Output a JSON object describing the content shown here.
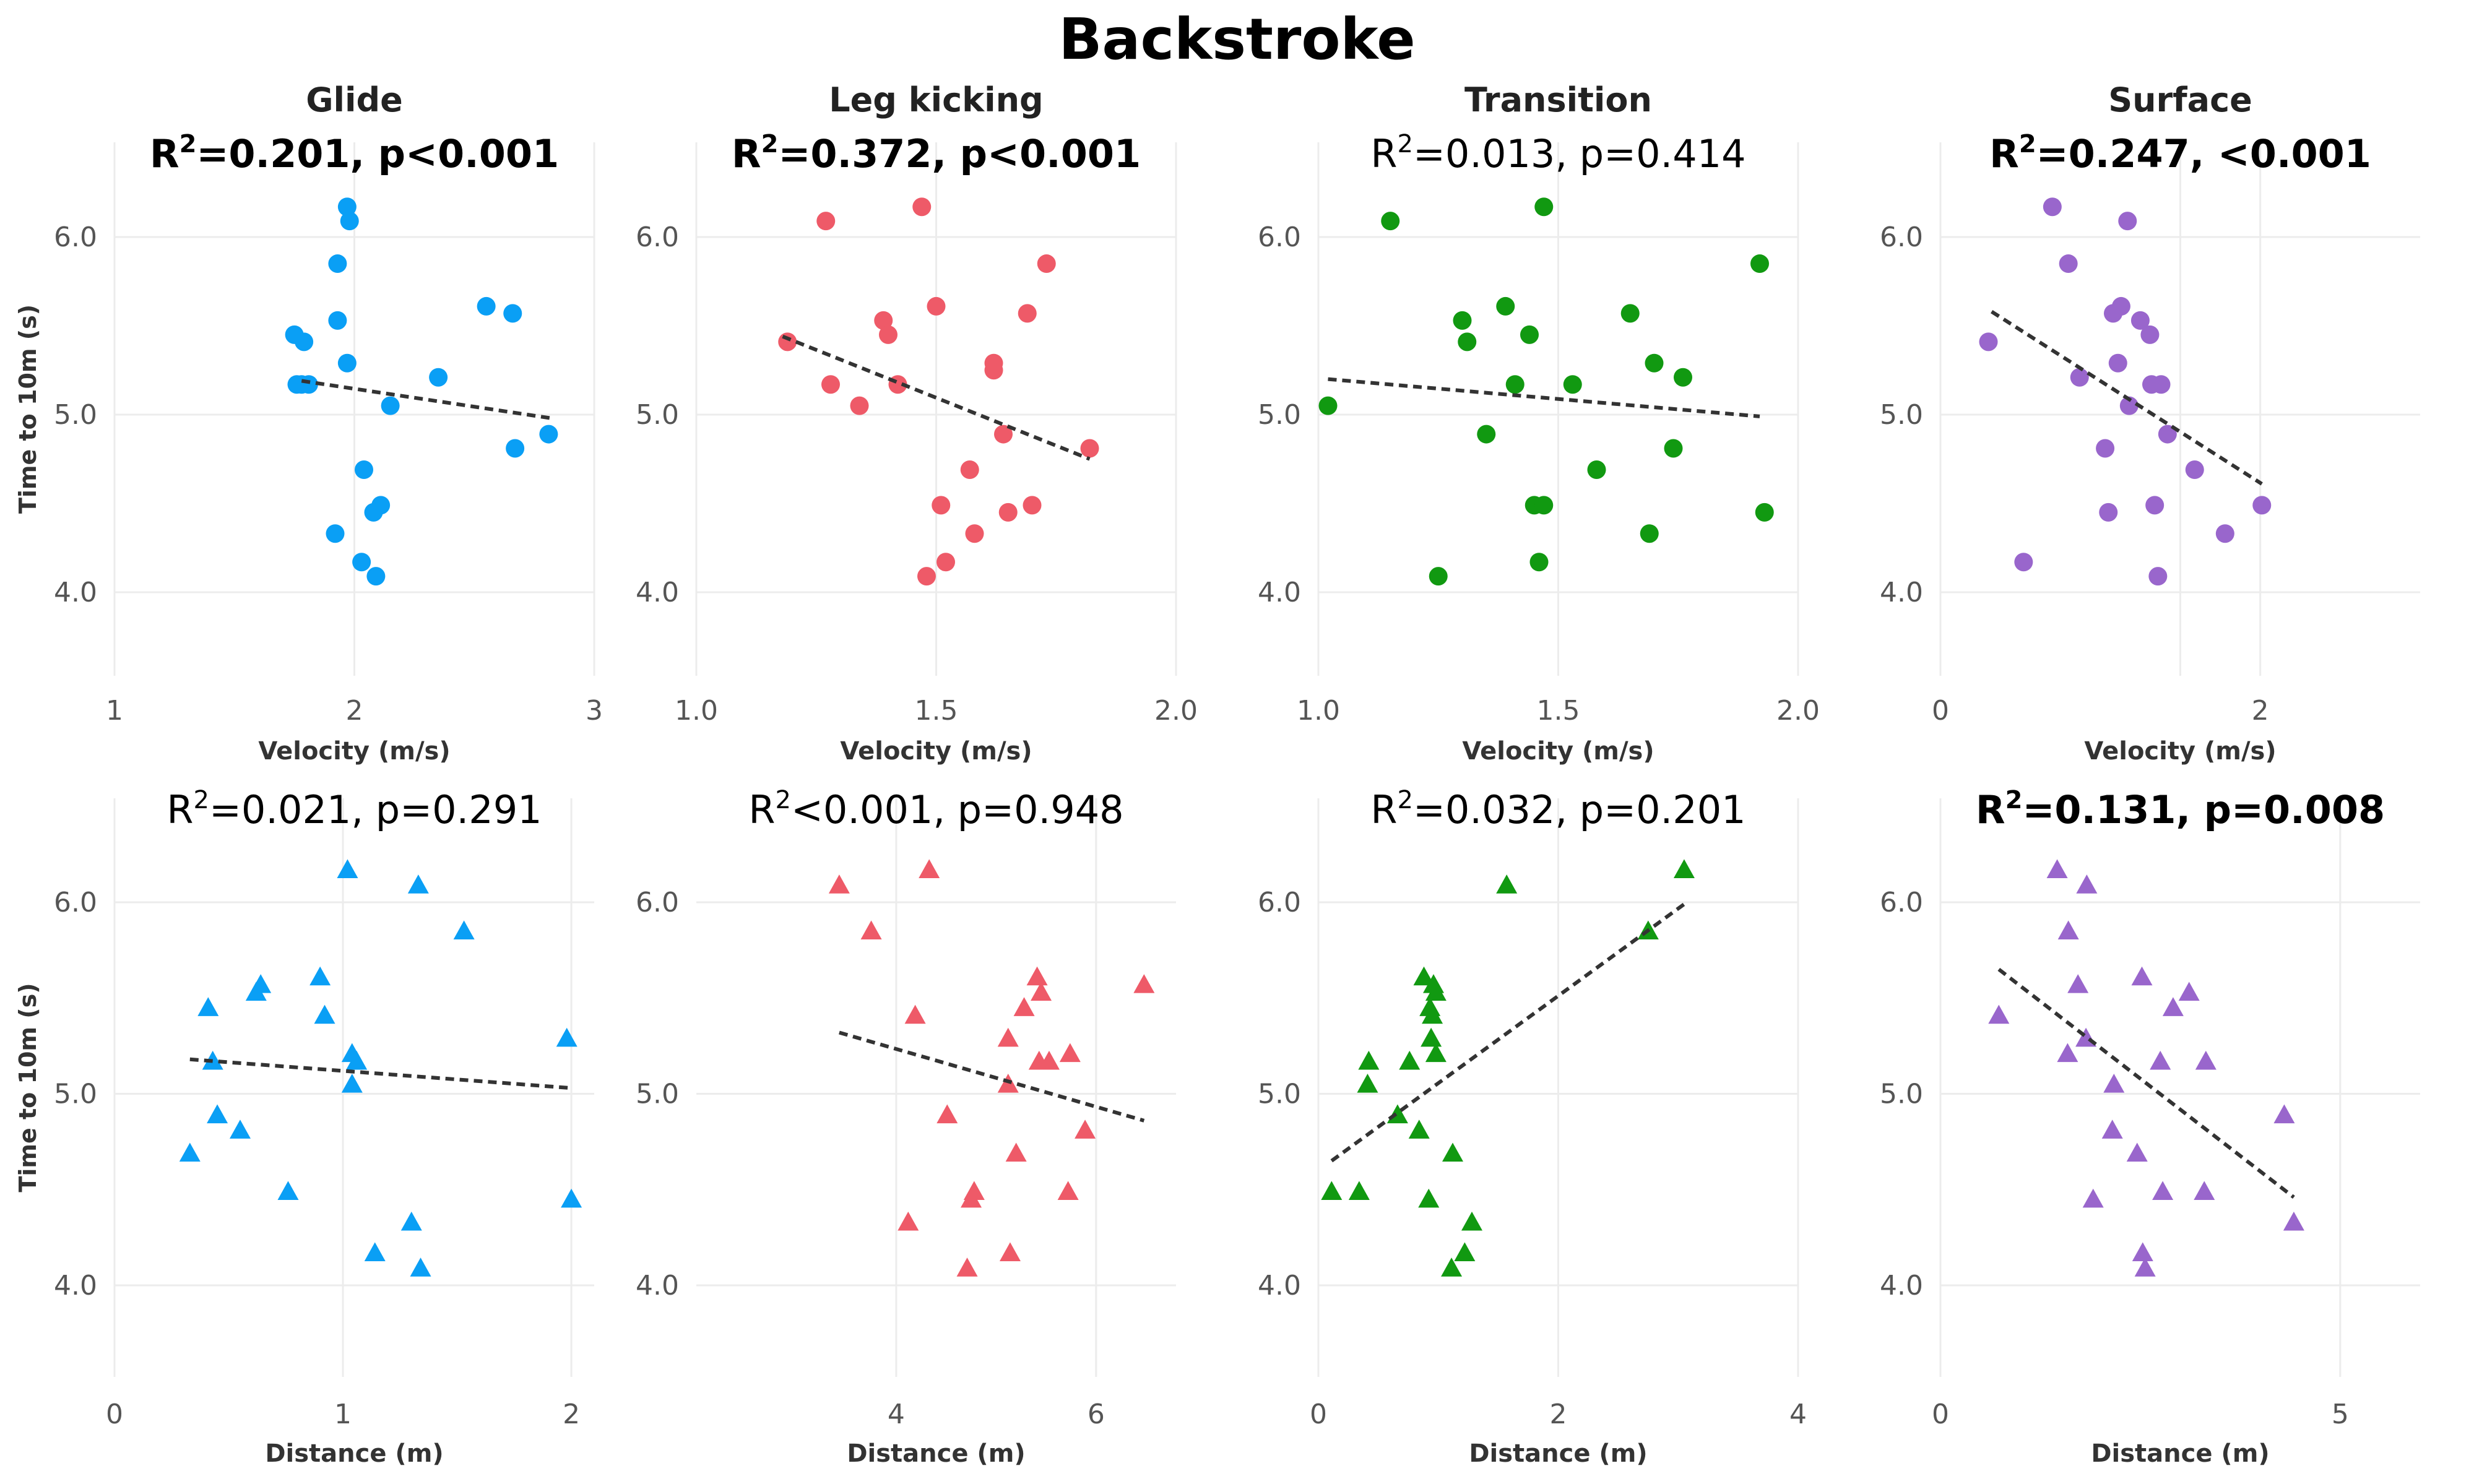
{
  "figure_title": "Backstroke",
  "colors": {
    "glide": "#0a9ff5",
    "leg_kicking": "#ee5a68",
    "transition": "#119911",
    "surface": "#9966cc",
    "trendline": "#333333",
    "grid": "#ececec",
    "tick_text": "#555555"
  },
  "chart_data": [
    {
      "id": "glide-velocity",
      "type": "scatter",
      "column_title": "Glide",
      "panel_color_key": "glide",
      "stat_bold": true,
      "stat": {
        "r_pre": "R",
        "sup": "2",
        "r_post": "=0.201, p<0.001"
      },
      "xlabel": "Velocity (m/s)",
      "ylabel": "Time to 10m (s)",
      "xlim": [
        1,
        3
      ],
      "xticks": [
        "1",
        "2",
        "3"
      ],
      "ylim": [
        3.5,
        6.5
      ],
      "yticks": [
        "4.0",
        "5.0",
        "6.0"
      ],
      "marker": "circle",
      "points": [
        [
          1.97,
          6.17
        ],
        [
          1.98,
          6.09
        ],
        [
          1.93,
          5.85
        ],
        [
          2.55,
          5.61
        ],
        [
          2.66,
          5.57
        ],
        [
          1.93,
          5.53
        ],
        [
          1.75,
          5.45
        ],
        [
          1.79,
          5.41
        ],
        [
          1.97,
          5.29
        ],
        [
          2.35,
          5.21
        ],
        [
          1.76,
          5.17
        ],
        [
          1.78,
          5.17
        ],
        [
          1.81,
          5.17
        ],
        [
          2.15,
          5.05
        ],
        [
          2.81,
          4.89
        ],
        [
          2.67,
          4.81
        ],
        [
          2.04,
          4.69
        ],
        [
          2.11,
          4.49
        ],
        [
          2.08,
          4.45
        ],
        [
          1.92,
          4.33
        ],
        [
          2.03,
          4.17
        ],
        [
          2.09,
          4.09
        ]
      ],
      "trend": [
        [
          1.78,
          5.19
        ],
        [
          2.82,
          4.98
        ]
      ]
    },
    {
      "id": "leg-kicking-velocity",
      "type": "scatter",
      "column_title": "Leg kicking",
      "panel_color_key": "leg_kicking",
      "stat_bold": true,
      "stat": {
        "r_pre": "R",
        "sup": "2",
        "r_post": "=0.372, p<0.001"
      },
      "xlabel": "Velocity (m/s)",
      "ylabel": "",
      "xlim": [
        1.0,
        2.0
      ],
      "xticks": [
        "1.0",
        "1.5",
        "2.0"
      ],
      "ylim": [
        3.5,
        6.5
      ],
      "yticks": [
        "4.0",
        "5.0",
        "6.0"
      ],
      "marker": "circle",
      "points": [
        [
          1.47,
          6.17
        ],
        [
          1.27,
          6.09
        ],
        [
          1.73,
          5.85
        ],
        [
          1.5,
          5.61
        ],
        [
          1.69,
          5.57
        ],
        [
          1.39,
          5.53
        ],
        [
          1.4,
          5.45
        ],
        [
          1.19,
          5.41
        ],
        [
          1.62,
          5.29
        ],
        [
          1.62,
          5.25
        ],
        [
          1.28,
          5.17
        ],
        [
          1.42,
          5.17
        ],
        [
          1.34,
          5.05
        ],
        [
          1.64,
          4.89
        ],
        [
          1.82,
          4.81
        ],
        [
          1.57,
          4.69
        ],
        [
          1.51,
          4.49
        ],
        [
          1.7,
          4.49
        ],
        [
          1.65,
          4.45
        ],
        [
          1.58,
          4.33
        ],
        [
          1.52,
          4.17
        ],
        [
          1.48,
          4.09
        ]
      ],
      "trend": [
        [
          1.18,
          5.44
        ],
        [
          1.82,
          4.75
        ]
      ]
    },
    {
      "id": "transition-velocity",
      "type": "scatter",
      "column_title": "Transition",
      "panel_color_key": "transition",
      "stat_bold": false,
      "stat": {
        "r_pre": "R",
        "sup": "2",
        "r_post": "=0.013, p=0.414"
      },
      "xlabel": "Velocity (m/s)",
      "ylabel": "",
      "xlim": [
        1.0,
        2.0
      ],
      "xticks": [
        "1.0",
        "1.5",
        "2.0"
      ],
      "ylim": [
        3.5,
        6.5
      ],
      "yticks": [
        "4.0",
        "5.0",
        "6.0"
      ],
      "marker": "circle",
      "points": [
        [
          1.47,
          6.17
        ],
        [
          1.15,
          6.09
        ],
        [
          1.92,
          5.85
        ],
        [
          1.39,
          5.61
        ],
        [
          1.65,
          5.57
        ],
        [
          1.3,
          5.53
        ],
        [
          1.44,
          5.45
        ],
        [
          1.31,
          5.41
        ],
        [
          1.7,
          5.29
        ],
        [
          1.76,
          5.21
        ],
        [
          1.41,
          5.17
        ],
        [
          1.53,
          5.17
        ],
        [
          1.02,
          5.05
        ],
        [
          1.35,
          4.89
        ],
        [
          1.74,
          4.81
        ],
        [
          1.58,
          4.69
        ],
        [
          1.45,
          4.49
        ],
        [
          1.47,
          4.49
        ],
        [
          1.93,
          4.45
        ],
        [
          1.69,
          4.33
        ],
        [
          1.46,
          4.17
        ],
        [
          1.25,
          4.09
        ]
      ],
      "trend": [
        [
          1.02,
          5.2
        ],
        [
          1.92,
          4.99
        ]
      ]
    },
    {
      "id": "surface-velocity",
      "type": "scatter",
      "column_title": "Surface",
      "panel_color_key": "surface",
      "stat_bold": true,
      "stat": {
        "r_pre": "R",
        "sup": "2",
        "r_post": "=0.247, <0.001"
      },
      "xlabel": "Velocity (m/s)",
      "ylabel": "",
      "xlim": [
        0,
        3
      ],
      "xticks": [
        "0",
        "",
        "2"
      ],
      "ylim": [
        3.5,
        6.5
      ],
      "yticks": [
        "4.0",
        "5.0",
        "6.0"
      ],
      "marker": "circle",
      "points": [
        [
          0.7,
          6.17
        ],
        [
          1.17,
          6.09
        ],
        [
          0.8,
          5.85
        ],
        [
          1.13,
          5.61
        ],
        [
          1.08,
          5.57
        ],
        [
          1.25,
          5.53
        ],
        [
          1.31,
          5.45
        ],
        [
          0.3,
          5.41
        ],
        [
          1.11,
          5.29
        ],
        [
          0.87,
          5.21
        ],
        [
          1.32,
          5.17
        ],
        [
          1.38,
          5.17
        ],
        [
          1.18,
          5.05
        ],
        [
          1.42,
          4.89
        ],
        [
          1.03,
          4.81
        ],
        [
          1.59,
          4.69
        ],
        [
          2.01,
          4.49
        ],
        [
          1.34,
          4.49
        ],
        [
          1.05,
          4.45
        ],
        [
          1.78,
          4.33
        ],
        [
          0.52,
          4.17
        ],
        [
          1.36,
          4.09
        ]
      ],
      "trend": [
        [
          0.32,
          5.58
        ],
        [
          2.01,
          4.61
        ]
      ]
    },
    {
      "id": "glide-distance",
      "type": "scatter",
      "column_title": "",
      "panel_color_key": "glide",
      "stat_bold": false,
      "stat": {
        "r_pre": "R",
        "sup": "2",
        "r_post": "=0.021, p=0.291"
      },
      "xlabel": "Distance (m)",
      "ylabel": "Time to 10m (s)",
      "xlim": [
        0,
        2.1
      ],
      "xticks": [
        "0",
        "1",
        "2"
      ],
      "ylim": [
        3.5,
        6.5
      ],
      "yticks": [
        "4.0",
        "5.0",
        "6.0"
      ],
      "marker": "triangle",
      "points": [
        [
          1.02,
          6.17
        ],
        [
          1.33,
          6.09
        ],
        [
          1.53,
          5.85
        ],
        [
          0.9,
          5.61
        ],
        [
          0.64,
          5.57
        ],
        [
          0.62,
          5.53
        ],
        [
          0.41,
          5.45
        ],
        [
          0.92,
          5.41
        ],
        [
          1.98,
          5.29
        ],
        [
          1.04,
          5.21
        ],
        [
          1.06,
          5.17
        ],
        [
          0.43,
          5.17
        ],
        [
          1.04,
          5.05
        ],
        [
          0.45,
          4.89
        ],
        [
          0.55,
          4.81
        ],
        [
          0.33,
          4.69
        ],
        [
          0.76,
          4.49
        ],
        [
          2.0,
          4.45
        ],
        [
          1.3,
          4.33
        ],
        [
          1.14,
          4.17
        ],
        [
          1.34,
          4.09
        ]
      ],
      "trend": [
        [
          0.33,
          5.18
        ],
        [
          2.0,
          5.03
        ]
      ]
    },
    {
      "id": "leg-kicking-distance",
      "type": "scatter",
      "column_title": "",
      "panel_color_key": "leg_kicking",
      "stat_bold": false,
      "stat": {
        "r_pre": "R",
        "sup": "2",
        "r_post": "<0.001, p=0.948"
      },
      "xlabel": "Distance (m)",
      "ylabel": "",
      "xlim": [
        2,
        6.8
      ],
      "xticks": [
        "4",
        "6"
      ],
      "ylim": [
        3.5,
        6.5
      ],
      "yticks": [
        "4.0",
        "5.0",
        "6.0"
      ],
      "marker": "triangle",
      "points": [
        [
          4.33,
          6.17
        ],
        [
          3.43,
          6.09
        ],
        [
          3.75,
          5.85
        ],
        [
          5.41,
          5.61
        ],
        [
          6.48,
          5.57
        ],
        [
          5.45,
          5.53
        ],
        [
          5.28,
          5.45
        ],
        [
          4.19,
          5.41
        ],
        [
          5.12,
          5.29
        ],
        [
          5.74,
          5.21
        ],
        [
          5.43,
          5.17
        ],
        [
          5.53,
          5.17
        ],
        [
          5.12,
          5.05
        ],
        [
          4.51,
          4.89
        ],
        [
          5.89,
          4.81
        ],
        [
          5.2,
          4.69
        ],
        [
          4.78,
          4.49
        ],
        [
          4.75,
          4.45
        ],
        [
          5.72,
          4.49
        ],
        [
          4.12,
          4.33
        ],
        [
          5.14,
          4.17
        ],
        [
          4.71,
          4.09
        ]
      ],
      "trend": [
        [
          3.43,
          5.32
        ],
        [
          6.48,
          4.86
        ]
      ]
    },
    {
      "id": "transition-distance",
      "type": "scatter",
      "column_title": "",
      "panel_color_key": "transition",
      "stat_bold": false,
      "stat": {
        "r_pre": "R",
        "sup": "2",
        "r_post": "=0.032, p=0.201"
      },
      "xlabel": "Distance (m)",
      "ylabel": "",
      "xlim": [
        0,
        4
      ],
      "xticks": [
        "0",
        "2",
        "4"
      ],
      "ylim": [
        3.5,
        6.5
      ],
      "yticks": [
        "4.0",
        "5.0",
        "6.0"
      ],
      "marker": "triangle",
      "points": [
        [
          3.05,
          6.17
        ],
        [
          1.57,
          6.09
        ],
        [
          2.75,
          5.85
        ],
        [
          0.88,
          5.61
        ],
        [
          0.96,
          5.57
        ],
        [
          0.98,
          5.53
        ],
        [
          0.93,
          5.45
        ],
        [
          0.95,
          5.41
        ],
        [
          0.94,
          5.29
        ],
        [
          0.98,
          5.21
        ],
        [
          0.42,
          5.17
        ],
        [
          0.76,
          5.17
        ],
        [
          0.41,
          5.05
        ],
        [
          0.66,
          4.89
        ],
        [
          0.84,
          4.81
        ],
        [
          1.12,
          4.69
        ],
        [
          0.11,
          4.49
        ],
        [
          0.34,
          4.49
        ],
        [
          0.92,
          4.45
        ],
        [
          1.28,
          4.33
        ],
        [
          1.22,
          4.17
        ],
        [
          1.11,
          4.09
        ]
      ],
      "trend": [
        [
          0.11,
          4.65
        ],
        [
          3.05,
          5.99
        ]
      ]
    },
    {
      "id": "surface-distance",
      "type": "scatter",
      "column_title": "",
      "panel_color_key": "surface",
      "stat_bold": true,
      "stat": {
        "r_pre": "R",
        "sup": "2",
        "r_post": "=0.131, p=0.008"
      },
      "xlabel": "Distance (m)",
      "ylabel": "",
      "xlim": [
        0,
        6
      ],
      "xticks": [
        "0",
        "5"
      ],
      "ylim": [
        3.5,
        6.5
      ],
      "yticks": [
        "4.0",
        "5.0",
        "6.0"
      ],
      "marker": "triangle",
      "points": [
        [
          1.46,
          6.17
        ],
        [
          1.83,
          6.09
        ],
        [
          1.6,
          5.85
        ],
        [
          2.52,
          5.61
        ],
        [
          1.72,
          5.57
        ],
        [
          3.11,
          5.53
        ],
        [
          2.91,
          5.45
        ],
        [
          0.73,
          5.41
        ],
        [
          1.82,
          5.29
        ],
        [
          1.59,
          5.21
        ],
        [
          2.75,
          5.17
        ],
        [
          3.32,
          5.17
        ],
        [
          2.17,
          5.05
        ],
        [
          4.3,
          4.89
        ],
        [
          2.15,
          4.81
        ],
        [
          2.46,
          4.69
        ],
        [
          2.78,
          4.49
        ],
        [
          3.3,
          4.49
        ],
        [
          1.91,
          4.45
        ],
        [
          4.42,
          4.33
        ],
        [
          2.53,
          4.17
        ],
        [
          2.56,
          4.09
        ]
      ],
      "trend": [
        [
          0.73,
          5.65
        ],
        [
          4.42,
          4.46
        ]
      ]
    }
  ]
}
